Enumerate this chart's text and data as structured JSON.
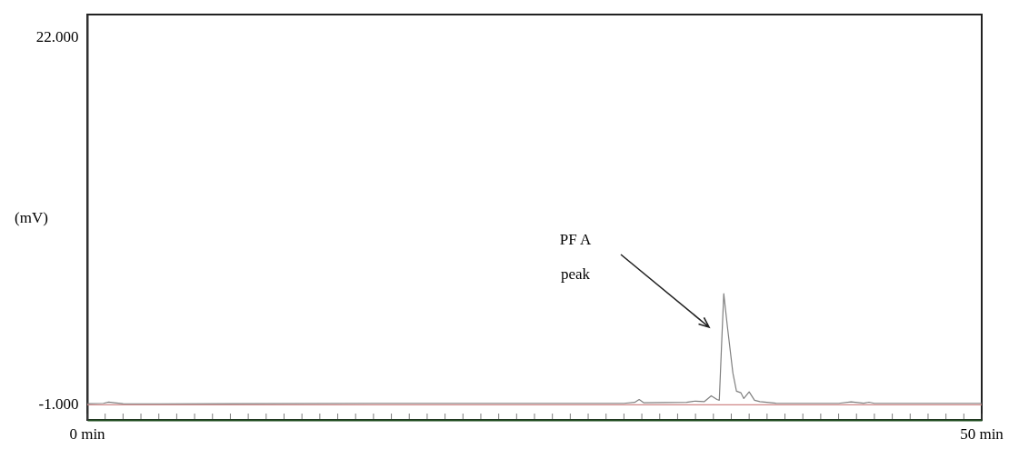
{
  "chart_data": {
    "type": "line",
    "ylabel": "(mV)",
    "xlim": [
      0,
      50
    ],
    "ylim": [
      -2000,
      23400
    ],
    "xticks": [
      {
        "value": 0,
        "label": "0 min"
      },
      {
        "value": 1,
        "label": null
      },
      {
        "value": 2,
        "label": null
      },
      {
        "value": 3,
        "label": null
      },
      {
        "value": 4,
        "label": null
      },
      {
        "value": 5,
        "label": null
      },
      {
        "value": 6,
        "label": null
      },
      {
        "value": 7,
        "label": null
      },
      {
        "value": 8,
        "label": null
      },
      {
        "value": 9,
        "label": null
      },
      {
        "value": 10,
        "label": null
      },
      {
        "value": 11,
        "label": null
      },
      {
        "value": 12,
        "label": null
      },
      {
        "value": 13,
        "label": null
      },
      {
        "value": 14,
        "label": null
      },
      {
        "value": 15,
        "label": null
      },
      {
        "value": 16,
        "label": null
      },
      {
        "value": 17,
        "label": null
      },
      {
        "value": 18,
        "label": null
      },
      {
        "value": 19,
        "label": null
      },
      {
        "value": 20,
        "label": null
      },
      {
        "value": 21,
        "label": null
      },
      {
        "value": 22,
        "label": null
      },
      {
        "value": 23,
        "label": null
      },
      {
        "value": 24,
        "label": null
      },
      {
        "value": 25,
        "label": null
      },
      {
        "value": 26,
        "label": null
      },
      {
        "value": 27,
        "label": null
      },
      {
        "value": 28,
        "label": null
      },
      {
        "value": 29,
        "label": null
      },
      {
        "value": 30,
        "label": null
      },
      {
        "value": 31,
        "label": null
      },
      {
        "value": 32,
        "label": null
      },
      {
        "value": 33,
        "label": null
      },
      {
        "value": 34,
        "label": null
      },
      {
        "value": 35,
        "label": null
      },
      {
        "value": 36,
        "label": null
      },
      {
        "value": 37,
        "label": null
      },
      {
        "value": 38,
        "label": null
      },
      {
        "value": 39,
        "label": null
      },
      {
        "value": 40,
        "label": null
      },
      {
        "value": 41,
        "label": null
      },
      {
        "value": 42,
        "label": null
      },
      {
        "value": 43,
        "label": null
      },
      {
        "value": 44,
        "label": null
      },
      {
        "value": 45,
        "label": null
      },
      {
        "value": 46,
        "label": null
      },
      {
        "value": 47,
        "label": null
      },
      {
        "value": 48,
        "label": null
      },
      {
        "value": 49,
        "label": null
      },
      {
        "value": 50,
        "label": "50 min"
      }
    ],
    "yticks": [
      {
        "value": 22000,
        "label": "22.000"
      },
      {
        "value": -1000,
        "label": "-1.000"
      }
    ],
    "grid": false,
    "line_style": "solid",
    "marker": "none",
    "series": [
      {
        "color": "#d08888",
        "x": [
          0,
          50
        ],
        "values": [
          -1050,
          -1050
        ]
      },
      {
        "color": "#808080",
        "x": [
          0,
          0.9,
          1.2,
          1.5,
          2,
          4,
          16,
          30,
          30.6,
          30.85,
          31.1,
          33.5,
          34,
          34.5,
          34.88,
          35.2,
          35.33,
          35.45,
          35.58,
          35.79,
          36.09,
          36.29,
          36.54,
          36.7,
          37.0,
          37.3,
          37.6,
          38.5,
          42,
          42.7,
          43.4,
          43.7,
          44,
          50
        ],
        "values": [
          -980,
          -960,
          -880,
          -920,
          -980,
          -990,
          -960,
          -960,
          -900,
          -720,
          -920,
          -900,
          -820,
          -850,
          -490,
          -720,
          -770,
          2500,
          5910,
          3780,
          940,
          -200,
          -300,
          -660,
          -240,
          -770,
          -850,
          -950,
          -960,
          -870,
          -950,
          -890,
          -960,
          -960
        ]
      }
    ],
    "annotations": [
      "PF A\npeak"
    ]
  }
}
